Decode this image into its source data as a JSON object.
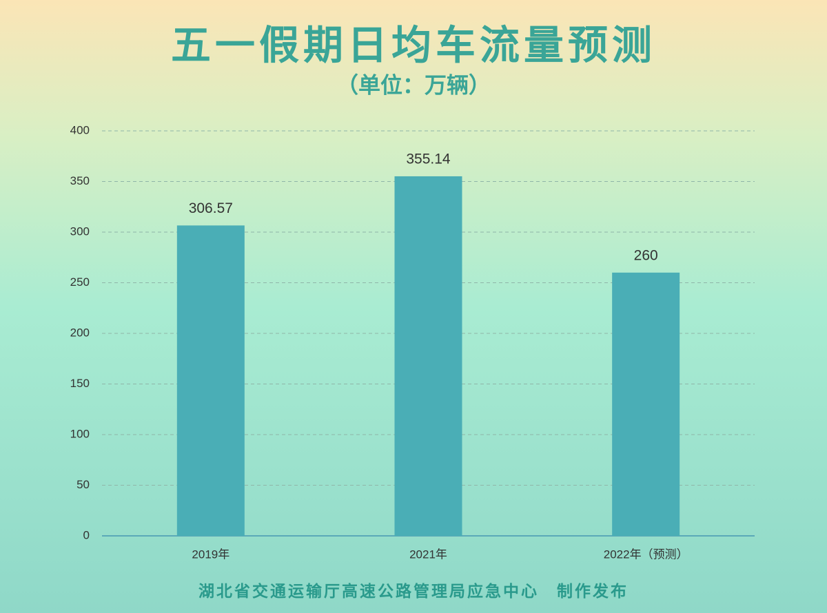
{
  "chart_data": {
    "type": "bar",
    "title": "五一假期日均车流量预测",
    "subtitle": "（单位：万辆）",
    "categories": [
      "2019年",
      "2021年",
      "2022年（预测）"
    ],
    "values": [
      306.57,
      355.14,
      260
    ],
    "color": "#4aaeb6",
    "ylim": [
      0,
      400
    ],
    "yticks": [
      0,
      50,
      100,
      150,
      200,
      250,
      300,
      350,
      400
    ],
    "grid": true,
    "footer": "湖北省交通运输厅高速公路管理局应急中心　制作发布"
  }
}
